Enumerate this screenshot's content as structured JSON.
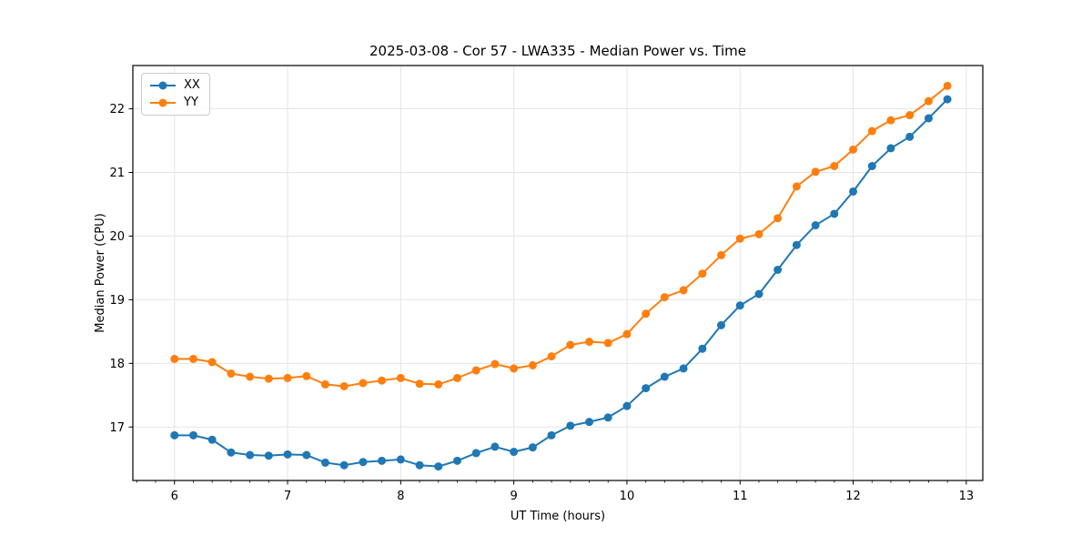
{
  "figure": {
    "title": "2025-03-08 - Cor 57 - LWA335 - Median Power vs. Time"
  },
  "chart_data": {
    "type": "line",
    "title": "2025-03-08 - Cor 57 - LWA335 - Median Power vs. Time",
    "xlabel": "UT Time (hours)",
    "ylabel": "Median Power (CPU)",
    "xlim": [
      5.632,
      13.146
    ],
    "ylim": [
      16.16,
      22.68
    ],
    "xticks": [
      6,
      7,
      8,
      9,
      10,
      11,
      12,
      13
    ],
    "yticks": [
      17,
      18,
      19,
      20,
      21,
      22
    ],
    "x_minor_tick_step_hours": 0.1667,
    "grid": true,
    "legend_position": "upper-left",
    "marker": "circle",
    "x": [
      6.0,
      6.167,
      6.333,
      6.5,
      6.667,
      6.833,
      7.0,
      7.167,
      7.333,
      7.5,
      7.667,
      7.833,
      8.0,
      8.167,
      8.333,
      8.5,
      8.667,
      8.833,
      9.0,
      9.167,
      9.333,
      9.5,
      9.667,
      9.833,
      10.0,
      10.167,
      10.333,
      10.5,
      10.667,
      10.833,
      11.0,
      11.167,
      11.333,
      11.5,
      11.667,
      11.833,
      12.0,
      12.167,
      12.333,
      12.5,
      12.667,
      12.833
    ],
    "series": [
      {
        "name": "XX",
        "color": "#1f77b4",
        "values": [
          16.87,
          16.87,
          16.8,
          16.6,
          16.56,
          16.55,
          16.57,
          16.56,
          16.44,
          16.4,
          16.45,
          16.47,
          16.49,
          16.4,
          16.38,
          16.47,
          16.59,
          16.69,
          16.61,
          16.68,
          16.87,
          17.02,
          17.08,
          17.15,
          17.33,
          17.61,
          17.79,
          17.92,
          18.23,
          18.6,
          18.91,
          19.09,
          19.47,
          19.86,
          20.17,
          20.35,
          20.7,
          21.1,
          21.38,
          21.56,
          21.85,
          22.15
        ]
      },
      {
        "name": "YY",
        "color": "#ff7f0e",
        "values": [
          18.07,
          18.07,
          18.02,
          17.84,
          17.79,
          17.76,
          17.77,
          17.8,
          17.67,
          17.64,
          17.69,
          17.73,
          17.77,
          17.68,
          17.67,
          17.77,
          17.89,
          17.99,
          17.92,
          17.97,
          18.11,
          18.29,
          18.34,
          18.32,
          18.46,
          18.78,
          19.04,
          19.15,
          19.41,
          19.7,
          19.96,
          20.03,
          20.28,
          20.78,
          21.01,
          21.1,
          21.36,
          21.65,
          21.82,
          21.9,
          22.12,
          22.36
        ]
      }
    ],
    "style": {
      "grid_color": "#e5e5e5",
      "spine_color": "#000000",
      "tick_label_color": "#000000",
      "background": "#ffffff"
    }
  }
}
